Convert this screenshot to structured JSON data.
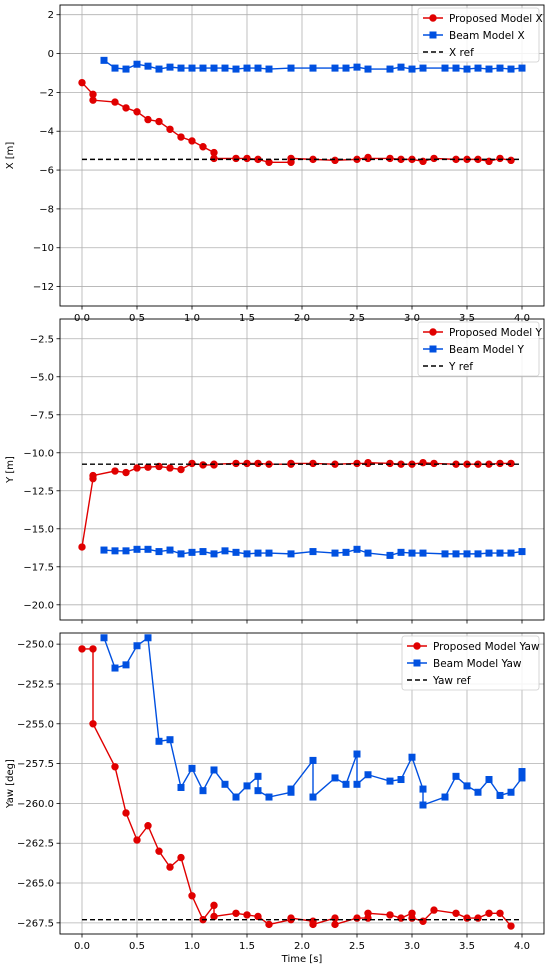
{
  "chart_data": [
    {
      "type": "line",
      "ylabel": "X [m]",
      "xlabel": "",
      "xlim": [
        -0.2,
        4.2
      ],
      "ylim": [
        -13,
        2.5
      ],
      "yticks": [
        2,
        0,
        -2,
        -4,
        -6,
        -8,
        -10,
        -12
      ],
      "ytick_labels": [
        "2",
        "0",
        "−2",
        "−4",
        "−6",
        "−8",
        "−10",
        "−12"
      ],
      "xticks": [
        0.0,
        0.5,
        1.0,
        1.5,
        2.0,
        2.5,
        3.0,
        3.5,
        4.0
      ],
      "xtick_labels": [
        "0.0",
        "0.5",
        "1.0",
        "1.5",
        "2.0",
        "2.5",
        "3.0",
        "3.5",
        "4.0"
      ],
      "grid": true,
      "legend_position": "top-right",
      "series": [
        {
          "name": "Proposed Model X",
          "color": "#e00000",
          "marker": "circle",
          "x": [
            0.0,
            0.1,
            0.1,
            0.3,
            0.4,
            0.5,
            0.6,
            0.7,
            0.8,
            0.9,
            1.0,
            1.1,
            1.2,
            1.2,
            1.4,
            1.5,
            1.6,
            1.7,
            1.9,
            1.9,
            2.1,
            2.3,
            2.5,
            2.6,
            2.6,
            2.8,
            2.9,
            3.0,
            3.1,
            3.2,
            3.4,
            3.5,
            3.6,
            3.7,
            3.8,
            3.9
          ],
          "y": [
            -1.5,
            -2.1,
            -2.4,
            -2.5,
            -2.8,
            -3.0,
            -3.4,
            -3.5,
            -3.9,
            -4.3,
            -4.5,
            -4.8,
            -5.1,
            -5.4,
            -5.4,
            -5.4,
            -5.45,
            -5.6,
            -5.6,
            -5.4,
            -5.45,
            -5.5,
            -5.45,
            -5.35,
            -5.4,
            -5.4,
            -5.45,
            -5.45,
            -5.55,
            -5.4,
            -5.45,
            -5.45,
            -5.45,
            -5.55,
            -5.4,
            -5.5
          ]
        },
        {
          "name": "Beam Model X",
          "color": "#0050e0",
          "marker": "square",
          "x": [
            0.2,
            0.3,
            0.4,
            0.5,
            0.6,
            0.7,
            0.8,
            0.9,
            1.0,
            1.1,
            1.2,
            1.3,
            1.4,
            1.5,
            1.6,
            1.7,
            1.9,
            2.1,
            2.3,
            2.4,
            2.5,
            2.6,
            2.8,
            2.9,
            3.0,
            3.1,
            3.3,
            3.4,
            3.5,
            3.6,
            3.7,
            3.8,
            3.9,
            4.0
          ],
          "y": [
            -0.35,
            -0.75,
            -0.8,
            -0.55,
            -0.65,
            -0.8,
            -0.7,
            -0.75,
            -0.75,
            -0.75,
            -0.75,
            -0.75,
            -0.8,
            -0.75,
            -0.75,
            -0.8,
            -0.75,
            -0.75,
            -0.75,
            -0.75,
            -0.7,
            -0.8,
            -0.8,
            -0.7,
            -0.8,
            -0.75,
            -0.75,
            -0.75,
            -0.8,
            -0.75,
            -0.8,
            -0.75,
            -0.8,
            -0.75
          ]
        },
        {
          "name": "X ref",
          "color": "#000000",
          "dashed": true,
          "x": [
            0.0,
            4.0
          ],
          "y": [
            -5.45,
            -5.45
          ]
        }
      ]
    },
    {
      "type": "line",
      "ylabel": "Y [m]",
      "xlabel": "",
      "xlim": [
        -0.2,
        4.2
      ],
      "ylim": [
        -21,
        -1.2
      ],
      "yticks": [
        -2.5,
        -5.0,
        -7.5,
        -10.0,
        -12.5,
        -15.0,
        -17.5,
        -20.0
      ],
      "ytick_labels": [
        "−2.5",
        "−5.0",
        "−7.5",
        "−10.0",
        "−12.5",
        "−15.0",
        "−17.5",
        "−20.0"
      ],
      "xticks": [
        0.0,
        0.5,
        1.0,
        1.5,
        2.0,
        2.5,
        3.0,
        3.5,
        4.0
      ],
      "xtick_labels": [],
      "grid": true,
      "legend_position": "top-right",
      "series": [
        {
          "name": "Proposed Model Y",
          "color": "#e00000",
          "marker": "circle",
          "x": [
            0.0,
            0.1,
            0.1,
            0.3,
            0.4,
            0.5,
            0.6,
            0.7,
            0.8,
            0.9,
            1.0,
            1.1,
            1.2,
            1.2,
            1.4,
            1.5,
            1.6,
            1.7,
            1.9,
            1.9,
            2.1,
            2.3,
            2.5,
            2.6,
            2.6,
            2.8,
            2.9,
            3.0,
            3.1,
            3.2,
            3.4,
            3.5,
            3.6,
            3.7,
            3.8,
            3.9
          ],
          "y": [
            -16.2,
            -11.7,
            -11.5,
            -11.2,
            -11.3,
            -11.0,
            -10.95,
            -10.9,
            -11.0,
            -11.1,
            -10.7,
            -10.8,
            -10.8,
            -10.75,
            -10.7,
            -10.7,
            -10.7,
            -10.75,
            -10.75,
            -10.7,
            -10.7,
            -10.75,
            -10.7,
            -10.7,
            -10.65,
            -10.7,
            -10.75,
            -10.75,
            -10.65,
            -10.7,
            -10.75,
            -10.75,
            -10.75,
            -10.75,
            -10.7,
            -10.7
          ]
        },
        {
          "name": "Beam Model Y",
          "color": "#0050e0",
          "marker": "square",
          "x": [
            0.2,
            0.3,
            0.4,
            0.5,
            0.6,
            0.7,
            0.8,
            0.9,
            1.0,
            1.1,
            1.2,
            1.3,
            1.4,
            1.5,
            1.6,
            1.7,
            1.9,
            2.1,
            2.3,
            2.4,
            2.5,
            2.6,
            2.8,
            2.9,
            3.0,
            3.1,
            3.3,
            3.4,
            3.5,
            3.6,
            3.7,
            3.8,
            3.9,
            4.0
          ],
          "y": [
            -16.4,
            -16.45,
            -16.45,
            -16.35,
            -16.35,
            -16.5,
            -16.4,
            -16.65,
            -16.55,
            -16.5,
            -16.65,
            -16.45,
            -16.55,
            -16.65,
            -16.6,
            -16.6,
            -16.65,
            -16.5,
            -16.6,
            -16.55,
            -16.35,
            -16.6,
            -16.75,
            -16.55,
            -16.6,
            -16.6,
            -16.65,
            -16.65,
            -16.65,
            -16.65,
            -16.6,
            -16.6,
            -16.6,
            -16.5
          ]
        },
        {
          "name": "Y ref",
          "color": "#000000",
          "dashed": true,
          "x": [
            0.0,
            4.0
          ],
          "y": [
            -10.75,
            -10.75
          ]
        }
      ]
    },
    {
      "type": "line",
      "ylabel": "Yaw [deg]",
      "xlabel": "Time [s]",
      "xlim": [
        -0.2,
        4.2
      ],
      "ylim": [
        -268.2,
        -249.3
      ],
      "yticks": [
        -250.0,
        -252.5,
        -255.0,
        -257.5,
        -260.0,
        -262.5,
        -265.0,
        -267.5
      ],
      "ytick_labels": [
        "−250.0",
        "−252.5",
        "−255.0",
        "−257.5",
        "−260.0",
        "−262.5",
        "−265.0",
        "−267.5"
      ],
      "xticks": [
        0.0,
        0.5,
        1.0,
        1.5,
        2.0,
        2.5,
        3.0,
        3.5,
        4.0
      ],
      "xtick_labels": [
        "0.0",
        "0.5",
        "1.0",
        "1.5",
        "2.0",
        "2.5",
        "3.0",
        "3.5",
        "4.0"
      ],
      "grid": true,
      "legend_position": "top-right",
      "series": [
        {
          "name": "Proposed Model Yaw",
          "color": "#e00000",
          "marker": "circle",
          "x": [
            0.0,
            0.1,
            0.1,
            0.3,
            0.4,
            0.5,
            0.6,
            0.7,
            0.8,
            0.9,
            1.0,
            1.1,
            1.2,
            1.2,
            1.4,
            1.5,
            1.6,
            1.7,
            1.9,
            1.9,
            2.1,
            2.1,
            2.3,
            2.3,
            2.5,
            2.6,
            2.6,
            2.8,
            2.9,
            3.0,
            3.0,
            3.1,
            3.2,
            3.4,
            3.5,
            3.6,
            3.7,
            3.8,
            3.9
          ],
          "y": [
            -250.3,
            -250.3,
            -255.0,
            -257.7,
            -260.6,
            -262.3,
            -261.4,
            -263.0,
            -264.0,
            -263.4,
            -265.8,
            -267.3,
            -266.4,
            -267.1,
            -266.9,
            -267.0,
            -267.1,
            -267.6,
            -267.3,
            -267.2,
            -267.4,
            -267.6,
            -267.2,
            -267.6,
            -267.2,
            -267.2,
            -266.9,
            -267.0,
            -267.2,
            -266.9,
            -267.2,
            -267.4,
            -266.7,
            -266.9,
            -267.2,
            -267.2,
            -266.9,
            -266.9,
            -267.7
          ]
        },
        {
          "name": "Beam Model Yaw",
          "color": "#0050e0",
          "marker": "square",
          "x": [
            0.2,
            0.3,
            0.4,
            0.5,
            0.6,
            0.7,
            0.8,
            0.9,
            1.0,
            1.1,
            1.2,
            1.3,
            1.4,
            1.5,
            1.6,
            1.6,
            1.7,
            1.9,
            1.9,
            2.1,
            2.1,
            2.3,
            2.4,
            2.5,
            2.5,
            2.6,
            2.8,
            2.9,
            3.0,
            3.1,
            3.1,
            3.3,
            3.4,
            3.5,
            3.6,
            3.7,
            3.8,
            3.9,
            4.0,
            4.0
          ],
          "y": [
            -249.6,
            -251.5,
            -251.3,
            -250.1,
            -249.6,
            -256.1,
            -256.0,
            -259.0,
            -257.8,
            -259.2,
            -257.9,
            -258.8,
            -259.6,
            -258.9,
            -258.3,
            -259.2,
            -259.6,
            -259.3,
            -259.1,
            -257.3,
            -259.6,
            -258.4,
            -258.8,
            -256.9,
            -258.8,
            -258.2,
            -258.6,
            -258.5,
            -257.1,
            -259.1,
            -260.1,
            -259.6,
            -258.3,
            -258.9,
            -259.3,
            -258.5,
            -259.5,
            -259.3,
            -258.4,
            -258.0
          ]
        },
        {
          "name": "Yaw ref",
          "color": "#000000",
          "dashed": true,
          "x": [
            0.0,
            4.0
          ],
          "y": [
            -267.3,
            -267.3
          ]
        }
      ]
    }
  ]
}
